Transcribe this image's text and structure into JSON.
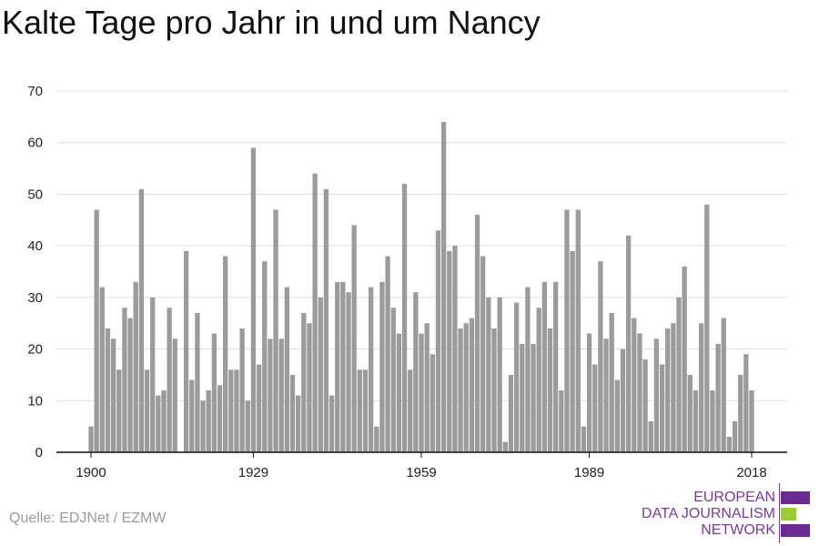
{
  "chart_data": {
    "type": "bar",
    "title": "Kalte Tage pro Jahr in und um Nancy",
    "xlabel": "",
    "ylabel": "",
    "xlim": [
      1900,
      2018
    ],
    "ylim": [
      0,
      70
    ],
    "yticks": [
      0,
      10,
      20,
      30,
      40,
      50,
      60,
      70
    ],
    "xticks": [
      1900,
      1929,
      1959,
      1989,
      2018
    ],
    "grid": "horizontal",
    "bar_color": "#9b9b9b",
    "x": [
      1900,
      1901,
      1902,
      1903,
      1904,
      1905,
      1906,
      1907,
      1908,
      1909,
      1910,
      1911,
      1912,
      1913,
      1914,
      1915,
      1916,
      1917,
      1918,
      1919,
      1920,
      1921,
      1922,
      1923,
      1924,
      1925,
      1926,
      1927,
      1928,
      1929,
      1930,
      1931,
      1932,
      1933,
      1934,
      1935,
      1936,
      1937,
      1938,
      1939,
      1940,
      1941,
      1942,
      1943,
      1944,
      1945,
      1946,
      1947,
      1948,
      1949,
      1950,
      1951,
      1952,
      1953,
      1954,
      1955,
      1956,
      1957,
      1958,
      1959,
      1960,
      1961,
      1962,
      1963,
      1964,
      1965,
      1966,
      1967,
      1968,
      1969,
      1970,
      1971,
      1972,
      1973,
      1974,
      1975,
      1976,
      1977,
      1978,
      1979,
      1980,
      1981,
      1982,
      1983,
      1984,
      1985,
      1986,
      1987,
      1988,
      1989,
      1990,
      1991,
      1992,
      1993,
      1994,
      1995,
      1996,
      1997,
      1998,
      1999,
      2000,
      2001,
      2002,
      2003,
      2004,
      2005,
      2006,
      2007,
      2008,
      2009,
      2010,
      2011,
      2012,
      2013,
      2014,
      2015,
      2016,
      2017,
      2018
    ],
    "values": [
      5,
      47,
      32,
      24,
      22,
      16,
      28,
      26,
      33,
      51,
      16,
      30,
      11,
      12,
      28,
      22,
      0,
      39,
      14,
      27,
      10,
      12,
      23,
      13,
      38,
      16,
      16,
      24,
      10,
      59,
      17,
      37,
      22,
      47,
      22,
      32,
      15,
      11,
      27,
      25,
      54,
      30,
      51,
      11,
      33,
      33,
      31,
      44,
      16,
      16,
      32,
      5,
      33,
      38,
      28,
      23,
      52,
      16,
      31,
      23,
      25,
      19,
      43,
      64,
      39,
      40,
      24,
      25,
      26,
      46,
      38,
      30,
      24,
      30,
      2,
      15,
      29,
      21,
      32,
      21,
      28,
      33,
      24,
      33,
      12,
      47,
      39,
      47,
      5,
      23,
      17,
      37,
      22,
      27,
      14,
      20,
      42,
      26,
      23,
      18,
      6,
      22,
      17,
      24,
      25,
      30,
      36,
      15,
      12,
      25,
      48,
      12,
      21,
      26,
      3,
      6,
      15,
      19,
      12
    ]
  },
  "source": "Quelle: EDJNet / EZMW",
  "logo": {
    "lines": [
      "EUROPEAN",
      "DATA JOURNALISM",
      "NETWORK"
    ],
    "text_color": "#7b3a96",
    "bar_colors": [
      "#6b2c91",
      "#9acd32",
      "#6b2c91"
    ]
  }
}
